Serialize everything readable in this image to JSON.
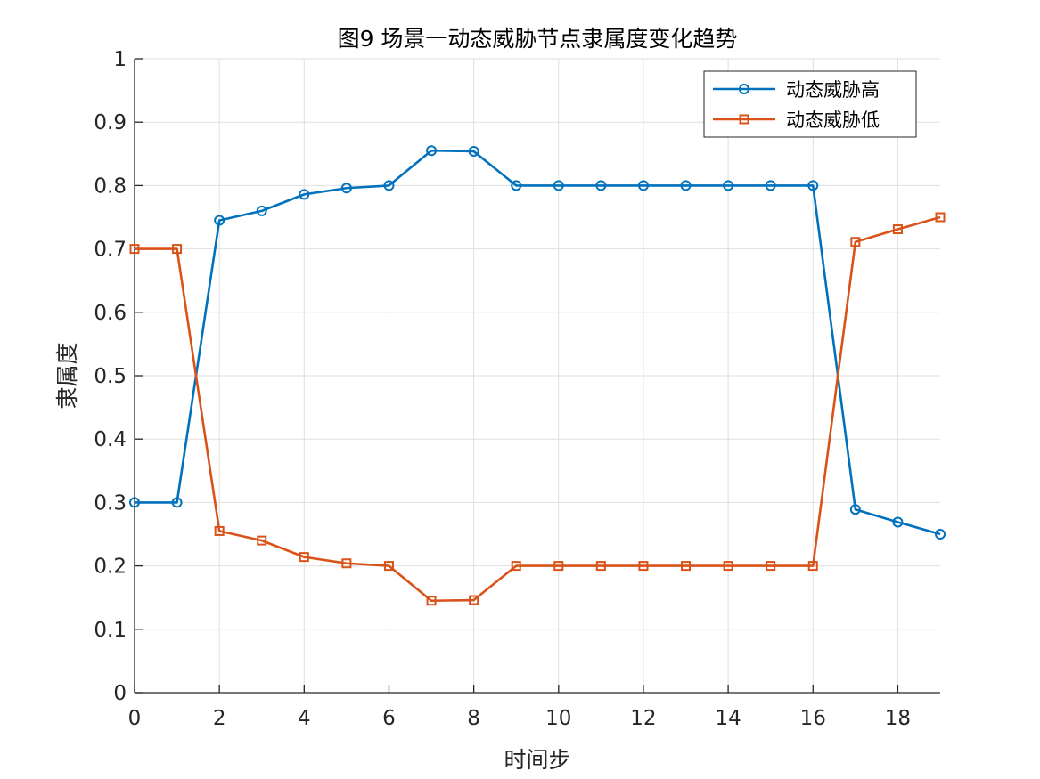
{
  "chart_data": {
    "type": "line",
    "title": "图9 场景一动态威胁节点隶属度变化趋势",
    "xlabel": "时间步",
    "ylabel": "隶属度",
    "xlim": [
      0,
      19
    ],
    "ylim": [
      0,
      1
    ],
    "x": [
      0,
      1,
      2,
      3,
      4,
      5,
      6,
      7,
      8,
      9,
      10,
      11,
      12,
      13,
      14,
      15,
      16,
      17,
      18,
      19
    ],
    "xticks": [
      0,
      2,
      4,
      6,
      8,
      10,
      12,
      14,
      16,
      18
    ],
    "xtick_labels": [
      "0",
      "2",
      "4",
      "6",
      "8",
      "10",
      "12",
      "14",
      "16",
      "18"
    ],
    "yticks": [
      0,
      0.1,
      0.2,
      0.3,
      0.4,
      0.5,
      0.6,
      0.7,
      0.8,
      0.9,
      1
    ],
    "ytick_labels": [
      "0",
      "0.1",
      "0.2",
      "0.3",
      "0.4",
      "0.5",
      "0.6",
      "0.7",
      "0.8",
      "0.9",
      "1"
    ],
    "grid": true,
    "legend_position": "top-right",
    "series": [
      {
        "name": "动态威胁高",
        "marker": "circle",
        "color": "#0072BD",
        "values": [
          0.3,
          0.3,
          0.745,
          0.76,
          0.786,
          0.796,
          0.8,
          0.855,
          0.854,
          0.8,
          0.8,
          0.8,
          0.8,
          0.8,
          0.8,
          0.8,
          0.8,
          0.289,
          0.269,
          0.25
        ]
      },
      {
        "name": "动态威胁低",
        "marker": "square",
        "color": "#D95319",
        "values": [
          0.7,
          0.7,
          0.255,
          0.24,
          0.214,
          0.204,
          0.2,
          0.145,
          0.146,
          0.2,
          0.2,
          0.2,
          0.2,
          0.2,
          0.2,
          0.2,
          0.2,
          0.711,
          0.731,
          0.75
        ]
      }
    ]
  }
}
